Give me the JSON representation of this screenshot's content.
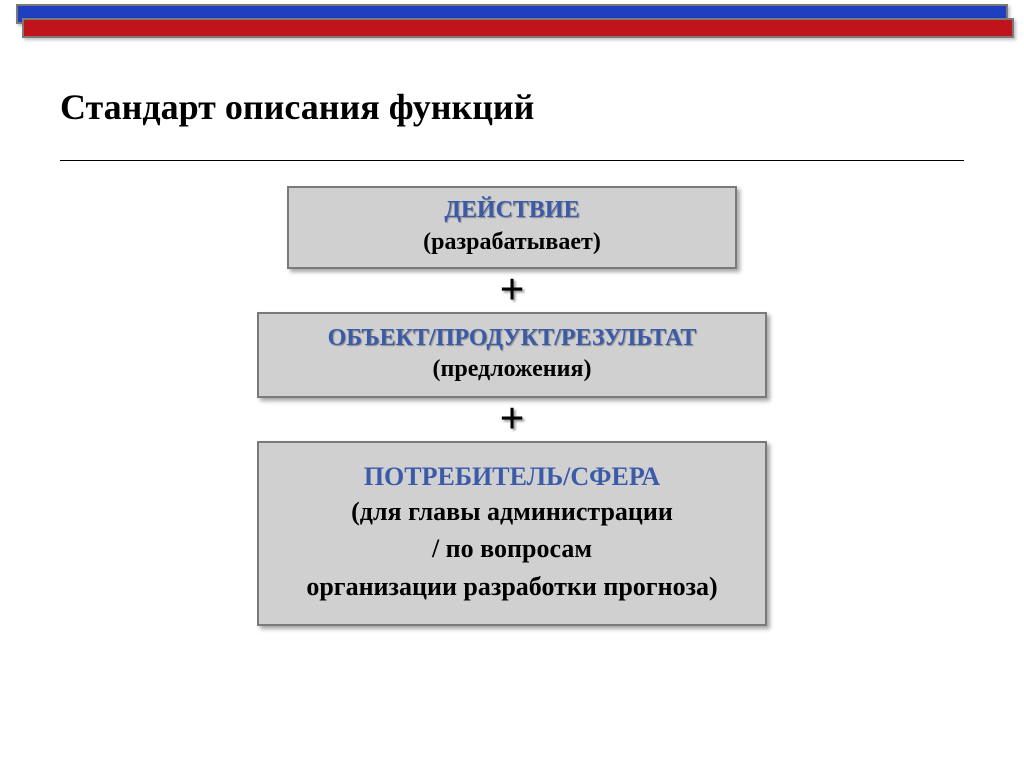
{
  "colors": {
    "bar_blue": "#1f3fbf",
    "bar_red": "#c0131b",
    "box_bg": "#d0d0d0",
    "title_blue": "#3b5ba9"
  },
  "title": "Стандарт описания функций",
  "boxes": [
    {
      "title": "ДЕЙСТВИЕ",
      "sub": "(разрабатывает)"
    },
    {
      "title": "ОБЪЕКТ/ПРОДУКТ/РЕЗУЛЬТАТ",
      "sub": "(предложения)"
    },
    {
      "title": "ПОТРЕБИТЕЛЬ/СФЕРА",
      "lines": [
        "(для главы администрации",
        "/ по вопросам",
        "организации разработки прогноза)"
      ]
    }
  ],
  "plus": "+"
}
